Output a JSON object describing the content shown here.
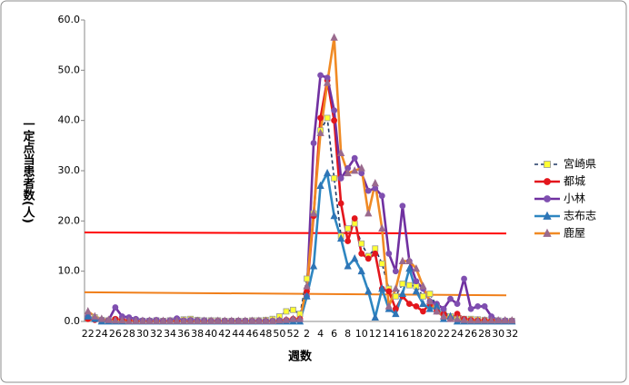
{
  "chart_data": {
    "type": "line",
    "y_label": "一定点当患者数(人)",
    "x_label": "週数",
    "categories": [
      "22",
      null,
      "24",
      null,
      "26",
      null,
      "28",
      null,
      "30",
      null,
      "32",
      null,
      "34",
      null,
      "36",
      null,
      "38",
      null,
      "40",
      null,
      "42",
      null,
      "44",
      null,
      "46",
      null,
      "48",
      null,
      "50",
      null,
      "52",
      null,
      "2",
      null,
      "4",
      null,
      "6",
      null,
      "8",
      null,
      "10",
      null,
      "12",
      null,
      "14",
      null,
      "16",
      null,
      "18",
      null,
      "20",
      null,
      "22",
      null,
      "24",
      null,
      "26",
      null,
      "28",
      null,
      "30",
      null,
      "32"
    ],
    "ylim": [
      0,
      60
    ],
    "yticks": [
      {
        "value": 0,
        "label": "0.0"
      },
      {
        "value": 10,
        "label": "10.0"
      },
      {
        "value": 20,
        "label": "20.0"
      },
      {
        "value": 30,
        "label": "30.0"
      },
      {
        "value": 40,
        "label": "40.0"
      },
      {
        "value": 50,
        "label": "50.0"
      },
      {
        "value": 60,
        "label": "60.0"
      }
    ],
    "series": [
      {
        "name": "宮崎県",
        "color": "#1f3864",
        "marker": "square",
        "marker_color": "#ffff33",
        "dash": true,
        "values": [
          0.5,
          0.8,
          0.3,
          0.2,
          0.3,
          0.2,
          0.2,
          0.2,
          0.1,
          0.1,
          0.2,
          0.1,
          0.2,
          0.3,
          0.4,
          0.5,
          0.3,
          0.2,
          0.2,
          0.2,
          0.1,
          0.1,
          0.1,
          0.1,
          0.2,
          0.2,
          0.3,
          0.5,
          1.0,
          2.0,
          2.3,
          1.5,
          8.5,
          21.5,
          38,
          40.5,
          28.5,
          17,
          18.5,
          19.5,
          15.5,
          13,
          14.5,
          11.5,
          6.5,
          5,
          7.5,
          7.2,
          7,
          5,
          5.5,
          3,
          2,
          1,
          0.8,
          0.5,
          0.5,
          0.4,
          0.3,
          0.3,
          0.2,
          0.1,
          0.1
        ]
      },
      {
        "name": "都城",
        "color": "#e3161c",
        "marker": "circle",
        "marker_color": "#e3161c",
        "dash": false,
        "values": [
          0.5,
          0.3,
          0.2,
          0.2,
          0.5,
          0.3,
          0.2,
          0.1,
          0.1,
          0.1,
          0.1,
          0.1,
          0.1,
          0.1,
          0.1,
          0.1,
          0.1,
          0.1,
          0.1,
          0.1,
          0.1,
          0.1,
          0.1,
          0.1,
          0.1,
          0.1,
          0.1,
          0.1,
          0.2,
          0.3,
          0.5,
          0.5,
          6,
          21,
          40.5,
          48,
          40,
          23.5,
          16,
          20.5,
          13.5,
          12.5,
          13.5,
          6.5,
          6,
          2.5,
          5,
          3.5,
          3,
          2,
          3.5,
          2,
          1.5,
          0.5,
          1.5,
          0.5,
          0.3,
          0.2,
          0.2,
          0.2,
          0.1,
          0.1,
          0.1
        ]
      },
      {
        "name": "小林",
        "color": "#7030a0",
        "marker": "circle",
        "marker_color": "#7f4fb0",
        "dash": false,
        "values": [
          1.0,
          0.5,
          0.3,
          0.2,
          2.8,
          1.0,
          0.8,
          0.5,
          0.2,
          0.2,
          0.3,
          0.1,
          0.2,
          0.6,
          0.2,
          0.3,
          0.2,
          0.2,
          0.1,
          0.1,
          0.1,
          0.1,
          0.1,
          0.1,
          0.1,
          0.1,
          0.1,
          0.1,
          0.2,
          0.2,
          0.3,
          0.2,
          5,
          35.5,
          49,
          48.5,
          42,
          28.5,
          30.5,
          32.5,
          29.5,
          26,
          26.5,
          25,
          13.5,
          10,
          23,
          12,
          8,
          6.5,
          4,
          3.5,
          2.5,
          4.5,
          3.5,
          8.5,
          2.5,
          3,
          3,
          1,
          0.2,
          0.2,
          0.1
        ]
      },
      {
        "name": "志布志",
        "color": "#2e86c1",
        "marker": "triangle",
        "marker_color": "#2e75b6",
        "dash": false,
        "values": [
          1.0,
          0.5,
          0,
          0,
          0,
          0,
          0,
          0,
          0,
          0,
          0,
          0,
          0,
          0,
          0,
          0,
          0,
          0,
          0,
          0,
          0,
          0,
          0,
          0,
          0,
          0,
          0,
          0,
          0,
          0,
          0,
          0,
          5,
          11,
          27,
          29.5,
          21,
          16.5,
          11,
          12.5,
          10,
          6,
          0.8,
          6.5,
          2.5,
          1.5,
          5.5,
          10.5,
          6,
          3.5,
          2.5,
          3,
          0.5,
          1,
          0,
          0,
          0,
          0,
          0,
          0,
          0,
          0,
          0
        ]
      },
      {
        "name": "鹿屋",
        "color": "#f08a24",
        "marker": "triangle",
        "marker_color": "#9a6a8e",
        "dash": false,
        "values": [
          2.0,
          1.0,
          0.5,
          0.3,
          0.2,
          0.2,
          0.1,
          0.1,
          0.1,
          0.1,
          0.1,
          0.1,
          0.1,
          0.1,
          0.1,
          0.1,
          0.1,
          0.1,
          0.1,
          0.1,
          0.1,
          0.1,
          0.1,
          0.1,
          0.1,
          0.1,
          0.1,
          0.1,
          0.2,
          0.3,
          0.5,
          0.5,
          7,
          21.5,
          37.5,
          47.5,
          56.5,
          33.5,
          29.5,
          30,
          30.5,
          21.5,
          27.5,
          18.5,
          3,
          6.5,
          12,
          12,
          10.5,
          7,
          4,
          2,
          1,
          0.5,
          0.5,
          0.3,
          0.2,
          0.2,
          0.2,
          0.2,
          0.2,
          0.2,
          0.2
        ]
      }
    ],
    "reference_lines": [
      {
        "color": "#ff0000",
        "values": [
          17.7,
          17.5
        ]
      },
      {
        "color": "#f07f1a",
        "values": [
          5.8,
          5.2
        ]
      }
    ]
  }
}
